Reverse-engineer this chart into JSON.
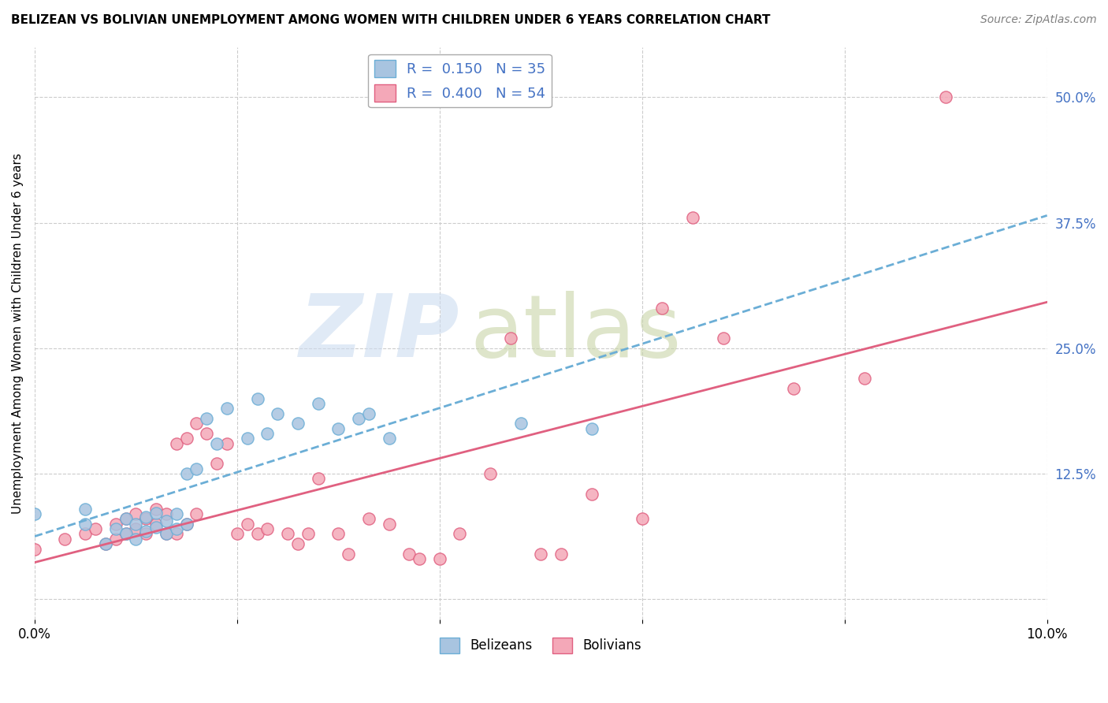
{
  "title": "BELIZEAN VS BOLIVIAN UNEMPLOYMENT AMONG WOMEN WITH CHILDREN UNDER 6 YEARS CORRELATION CHART",
  "source": "Source: ZipAtlas.com",
  "ylabel": "Unemployment Among Women with Children Under 6 years",
  "xlim": [
    0.0,
    0.1
  ],
  "ylim": [
    -0.02,
    0.55
  ],
  "y_ticks_right": [
    0.0,
    0.125,
    0.25,
    0.375,
    0.5
  ],
  "y_tick_labels_right": [
    "",
    "12.5%",
    "25.0%",
    "37.5%",
    "50.0%"
  ],
  "legend_r1": "R =  0.150",
  "legend_n1": "N = 35",
  "legend_r2": "R =  0.400",
  "legend_n2": "N = 54",
  "color_belizean": "#a8c4e0",
  "color_bolivian": "#f4a8b8",
  "color_line_belizean": "#6baed6",
  "color_line_bolivian": "#e06080",
  "belizean_x": [
    0.0,
    0.005,
    0.005,
    0.007,
    0.008,
    0.009,
    0.009,
    0.01,
    0.01,
    0.011,
    0.011,
    0.012,
    0.012,
    0.013,
    0.013,
    0.014,
    0.014,
    0.015,
    0.015,
    0.016,
    0.017,
    0.018,
    0.019,
    0.021,
    0.022,
    0.023,
    0.024,
    0.026,
    0.028,
    0.03,
    0.032,
    0.033,
    0.035,
    0.048,
    0.055
  ],
  "belizean_y": [
    0.085,
    0.075,
    0.09,
    0.055,
    0.07,
    0.065,
    0.08,
    0.06,
    0.075,
    0.068,
    0.082,
    0.072,
    0.086,
    0.065,
    0.078,
    0.07,
    0.085,
    0.075,
    0.125,
    0.13,
    0.18,
    0.155,
    0.19,
    0.16,
    0.2,
    0.165,
    0.185,
    0.175,
    0.195,
    0.17,
    0.18,
    0.185,
    0.16,
    0.175,
    0.17
  ],
  "bolivian_x": [
    0.0,
    0.003,
    0.005,
    0.006,
    0.007,
    0.008,
    0.008,
    0.009,
    0.009,
    0.01,
    0.01,
    0.011,
    0.011,
    0.012,
    0.012,
    0.013,
    0.013,
    0.014,
    0.014,
    0.015,
    0.015,
    0.016,
    0.016,
    0.017,
    0.018,
    0.019,
    0.02,
    0.021,
    0.022,
    0.023,
    0.025,
    0.026,
    0.027,
    0.028,
    0.03,
    0.031,
    0.033,
    0.035,
    0.037,
    0.038,
    0.04,
    0.042,
    0.045,
    0.047,
    0.05,
    0.052,
    0.055,
    0.06,
    0.062,
    0.065,
    0.068,
    0.075,
    0.082,
    0.09
  ],
  "bolivian_y": [
    0.05,
    0.06,
    0.065,
    0.07,
    0.055,
    0.06,
    0.075,
    0.065,
    0.08,
    0.07,
    0.085,
    0.065,
    0.08,
    0.075,
    0.09,
    0.065,
    0.085,
    0.065,
    0.155,
    0.075,
    0.16,
    0.085,
    0.175,
    0.165,
    0.135,
    0.155,
    0.065,
    0.075,
    0.065,
    0.07,
    0.065,
    0.055,
    0.065,
    0.12,
    0.065,
    0.045,
    0.08,
    0.075,
    0.045,
    0.04,
    0.04,
    0.065,
    0.125,
    0.26,
    0.045,
    0.045,
    0.105,
    0.08,
    0.29,
    0.38,
    0.26,
    0.21,
    0.22,
    0.5
  ]
}
